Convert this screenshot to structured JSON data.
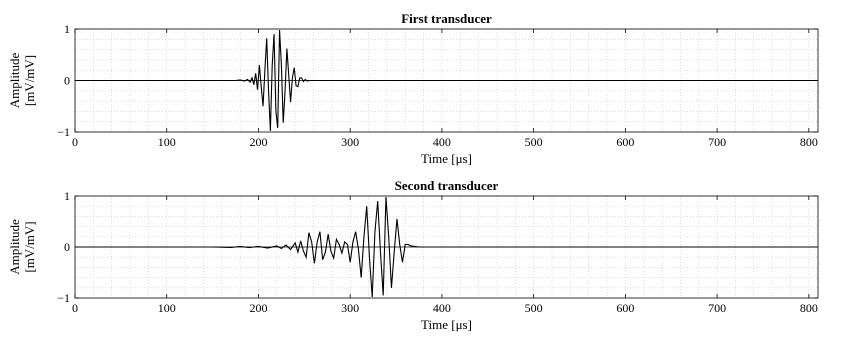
{
  "chart_data": [
    {
      "type": "line",
      "title": "First transducer",
      "xlabel": "Time [μs]",
      "ylabel_lines": [
        "Amplitude",
        "[mV/mV]"
      ],
      "xlim": [
        0,
        810
      ],
      "ylim": [
        -1,
        1
      ],
      "xticks": [
        0,
        100,
        200,
        300,
        400,
        500,
        600,
        700,
        800
      ],
      "yticks": [
        -1,
        0,
        1
      ],
      "xtick_labels": [
        "0",
        "100",
        "200",
        "300",
        "400",
        "500",
        "600",
        "700",
        "800"
      ],
      "ytick_labels": [
        "−1",
        "0",
        "1"
      ],
      "grid": true,
      "series": [
        {
          "x": [
            0,
            150,
            175,
            180,
            185,
            188,
            191,
            193,
            195,
            197,
            199,
            201,
            203,
            205,
            207,
            209,
            211,
            213,
            215,
            217,
            219,
            221,
            223,
            225,
            227,
            229,
            231,
            233,
            235,
            237,
            239,
            241,
            243,
            245,
            247,
            249,
            251,
            253,
            255,
            260,
            270,
            810
          ],
          "y": [
            0,
            0,
            0,
            0.01,
            -0.01,
            0.02,
            -0.03,
            0.05,
            -0.08,
            0.14,
            -0.18,
            0.3,
            -0.12,
            -0.5,
            0.2,
            0.82,
            -0.2,
            -0.98,
            0.3,
            0.9,
            -0.6,
            -0.92,
            0.98,
            0.3,
            -0.82,
            -0.2,
            0.62,
            0.1,
            -0.42,
            0.05,
            0.25,
            -0.1,
            -0.12,
            0.05,
            0.05,
            -0.02,
            0.02,
            -0.01,
            0,
            0,
            0,
            0
          ]
        }
      ]
    },
    {
      "type": "line",
      "title": "Second transducer",
      "xlabel": "Time [μs]",
      "ylabel_lines": [
        "Amplitude",
        "[mV/mV]"
      ],
      "xlim": [
        0,
        810
      ],
      "ylim": [
        -1,
        1
      ],
      "xticks": [
        0,
        100,
        200,
        300,
        400,
        500,
        600,
        700,
        800
      ],
      "yticks": [
        -1,
        0,
        1
      ],
      "xtick_labels": [
        "0",
        "100",
        "200",
        "300",
        "400",
        "500",
        "600",
        "700",
        "800"
      ],
      "ytick_labels": [
        "−1",
        "0",
        "1"
      ],
      "grid": true,
      "series": [
        {
          "x": [
            0,
            150,
            170,
            180,
            190,
            200,
            210,
            220,
            225,
            230,
            235,
            240,
            243,
            246,
            249,
            252,
            255,
            258,
            261,
            264,
            267,
            270,
            273,
            276,
            279,
            282,
            285,
            288,
            291,
            294,
            297,
            300,
            303,
            306,
            309,
            312,
            315,
            318,
            321,
            324,
            327,
            330,
            333,
            336,
            339,
            342,
            345,
            348,
            351,
            354,
            357,
            360,
            363,
            366,
            375,
            810
          ],
          "y": [
            0,
            0,
            -0.01,
            0.01,
            -0.01,
            0.01,
            -0.02,
            0.02,
            -0.03,
            0.04,
            -0.05,
            0.08,
            -0.1,
            0.12,
            -0.08,
            -0.2,
            0.28,
            0.1,
            -0.32,
            0.1,
            0.3,
            -0.25,
            -0.1,
            0.25,
            -0.08,
            -0.22,
            0.15,
            0.05,
            -0.12,
            0.1,
            0.05,
            -0.3,
            0.1,
            0.3,
            -0.05,
            -0.6,
            0.2,
            0.8,
            -0.2,
            -0.98,
            0.3,
            0.9,
            -0.1,
            -0.95,
            0.98,
            0.2,
            -0.8,
            -0.1,
            0.55,
            0.05,
            -0.3,
            0.05,
            0.05,
            0.02,
            0,
            0
          ]
        }
      ]
    }
  ]
}
